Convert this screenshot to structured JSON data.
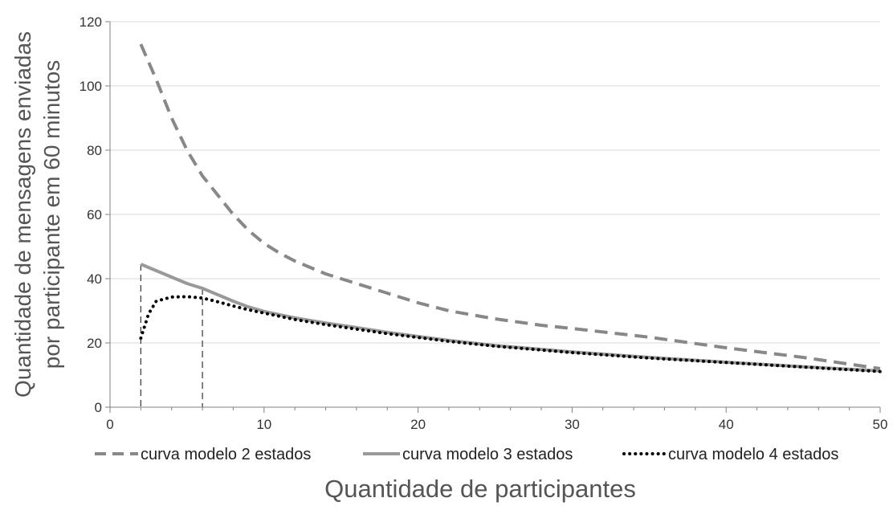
{
  "chart_data": {
    "type": "line",
    "xlabel": "Quantidade de participantes",
    "ylabel_lines": [
      "Quantidade de mensagens enviadas",
      "por participante em 60 minutos"
    ],
    "xlim": [
      0,
      50
    ],
    "ylim": [
      0,
      120
    ],
    "x_ticks": [
      0,
      10,
      20,
      30,
      40,
      50
    ],
    "y_ticks": [
      0,
      20,
      40,
      60,
      80,
      100,
      120
    ],
    "grid": "horizontal",
    "legend_position": "bottom",
    "series": [
      {
        "name": "curva modelo 2 estados",
        "style": "dashed",
        "color": "#888888",
        "points": [
          [
            2,
            113
          ],
          [
            3,
            102
          ],
          [
            4,
            90
          ],
          [
            5,
            80
          ],
          [
            6,
            72
          ],
          [
            7,
            66
          ],
          [
            8,
            60
          ],
          [
            9,
            55
          ],
          [
            10,
            51
          ],
          [
            11,
            48
          ],
          [
            12,
            45.5
          ],
          [
            13,
            43.5
          ],
          [
            14,
            41.5
          ],
          [
            15,
            40
          ],
          [
            16,
            38.5
          ],
          [
            17,
            37
          ],
          [
            18,
            35.5
          ],
          [
            19,
            34
          ],
          [
            20,
            32.5
          ],
          [
            22,
            30
          ],
          [
            25,
            27.5
          ],
          [
            28,
            25.5
          ],
          [
            30,
            24.5
          ],
          [
            35,
            21.8
          ],
          [
            40,
            18.5
          ],
          [
            45,
            15.5
          ],
          [
            50,
            12
          ]
        ]
      },
      {
        "name": "curva modelo 3 estados",
        "style": "solid",
        "color": "#999999",
        "points": [
          [
            2,
            44.5
          ],
          [
            3,
            42.5
          ],
          [
            4,
            40.5
          ],
          [
            5,
            38.5
          ],
          [
            6,
            37
          ],
          [
            7,
            35
          ],
          [
            8,
            33
          ],
          [
            9,
            31.2
          ],
          [
            10,
            29.8
          ],
          [
            12,
            27.8
          ],
          [
            14,
            26.2
          ],
          [
            16,
            24.8
          ],
          [
            18,
            23.3
          ],
          [
            20,
            22
          ],
          [
            22,
            20.8
          ],
          [
            25,
            19.2
          ],
          [
            28,
            18
          ],
          [
            30,
            17.2
          ],
          [
            35,
            15.5
          ],
          [
            40,
            14
          ],
          [
            45,
            12.6
          ],
          [
            50,
            11.3
          ]
        ]
      },
      {
        "name": "curva modelo 4 estados",
        "style": "dotted",
        "color": "#000000",
        "points": [
          [
            2,
            21.5
          ],
          [
            2.5,
            29
          ],
          [
            3,
            33
          ],
          [
            4,
            34.3
          ],
          [
            5,
            34.4
          ],
          [
            6,
            34
          ],
          [
            7,
            32.8
          ],
          [
            8,
            31.5
          ],
          [
            9,
            30.3
          ],
          [
            10,
            29.3
          ],
          [
            12,
            27.3
          ],
          [
            14,
            25.7
          ],
          [
            16,
            24.3
          ],
          [
            18,
            22.9
          ],
          [
            20,
            21.7
          ],
          [
            22,
            20.5
          ],
          [
            25,
            19
          ],
          [
            28,
            17.8
          ],
          [
            30,
            17
          ],
          [
            35,
            15.3
          ],
          [
            40,
            13.9
          ],
          [
            45,
            12.5
          ],
          [
            50,
            11.1
          ]
        ]
      }
    ],
    "reference_lines": [
      {
        "x": 2,
        "y": 44.5,
        "style": "dashed"
      },
      {
        "x": 6,
        "y": 37,
        "style": "dashed"
      }
    ]
  }
}
